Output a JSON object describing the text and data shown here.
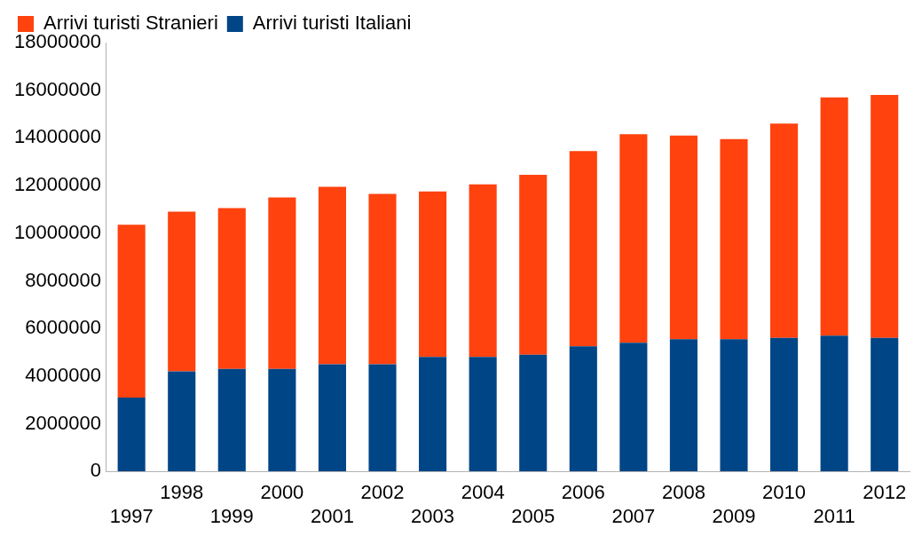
{
  "chart_data": {
    "type": "bar",
    "stacked": true,
    "legend": "top left",
    "grid": false,
    "categories": [
      "1997",
      "1998",
      "1999",
      "2000",
      "2001",
      "2002",
      "2003",
      "2004",
      "2005",
      "2006",
      "2007",
      "2008",
      "2009",
      "2010",
      "2011",
      "2012"
    ],
    "series": [
      {
        "name": "Arrivi turisti Italiani",
        "color": "#004586",
        "values": [
          3100000,
          4200000,
          4300000,
          4300000,
          4500000,
          4500000,
          4800000,
          4800000,
          4900000,
          5250000,
          5400000,
          5550000,
          5550000,
          5600000,
          5700000,
          5600000
        ]
      },
      {
        "name": "Arrivi turisti Stranieri",
        "color": "#ff420e",
        "values": [
          7250000,
          6700000,
          6750000,
          7200000,
          7450000,
          7150000,
          6950000,
          7250000,
          7550000,
          8200000,
          8750000,
          8550000,
          8400000,
          9000000,
          10000000,
          10200000
        ]
      }
    ],
    "ylim": [
      0,
      18000000
    ],
    "yticks": [
      0,
      2000000,
      4000000,
      6000000,
      8000000,
      10000000,
      12000000,
      14000000,
      16000000,
      18000000
    ]
  }
}
